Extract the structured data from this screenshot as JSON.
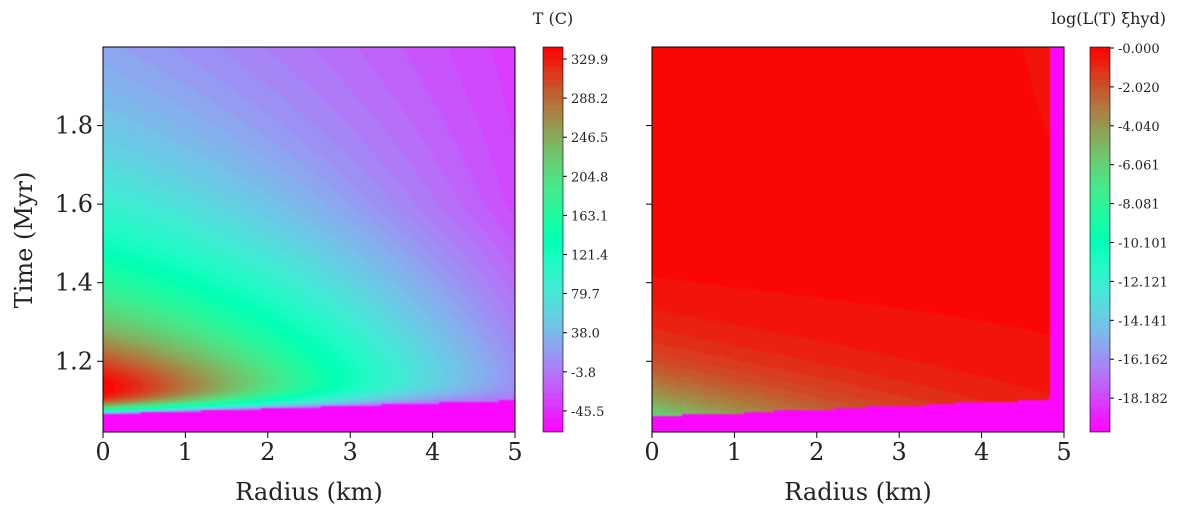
{
  "chart_data": [
    {
      "type": "heatmap",
      "subtype": "filled-contour",
      "xlabel": "Radius (km)",
      "ylabel": "Time (Myr)",
      "xlim": [
        0,
        5
      ],
      "ylim": [
        1.02,
        2.0
      ],
      "x_ticks": [
        "0",
        "1",
        "2",
        "3",
        "4",
        "5"
      ],
      "y_ticks": [
        "1.2",
        "1.4",
        "1.6",
        "1.8"
      ],
      "y_tick_values": [
        1.2,
        1.4,
        1.6,
        1.8
      ],
      "colormap": "rainbow",
      "colorbar": {
        "label": "T (C)",
        "ticks": [
          "329.9",
          "288.2",
          "246.5",
          "204.8",
          "163.1",
          "121.4",
          "79.7",
          "38.0",
          "-3.8",
          "-45.5"
        ],
        "range": [
          -65,
          330
        ]
      },
      "features": {
        "front_time_at_r0": 1.065,
        "front_time_at_r5": 1.1,
        "peak_T": 329.9,
        "peak_time": 1.18,
        "below_front_T": -65
      }
    },
    {
      "type": "heatmap",
      "subtype": "filled-contour",
      "xlabel": "Radius (km)",
      "ylabel": "",
      "xlim": [
        0,
        5
      ],
      "ylim": [
        1.02,
        2.0
      ],
      "x_ticks": [
        "0",
        "1",
        "2",
        "3",
        "4",
        "5"
      ],
      "y_ticks": [],
      "y_tick_values": [
        1.2,
        1.4,
        1.6,
        1.8
      ],
      "colormap": "rainbow",
      "colorbar": {
        "label": "log(L(T) ξhyd)",
        "ticks": [
          "-0.000",
          "-2.020",
          "-4.040",
          "-6.061",
          "-8.081",
          "-10.101",
          "-12.121",
          "-14.141",
          "-16.162",
          "-18.182"
        ],
        "range": [
          -20.2,
          0
        ]
      },
      "features": {
        "front_time_at_r0": 1.06,
        "front_time_at_r48": 1.105,
        "edge_radius": 4.82,
        "min_value_near_front": -6.5
      }
    }
  ],
  "colors": {
    "rainbow_low": "#8000ff",
    "rainbow_high": "#ff0000"
  }
}
